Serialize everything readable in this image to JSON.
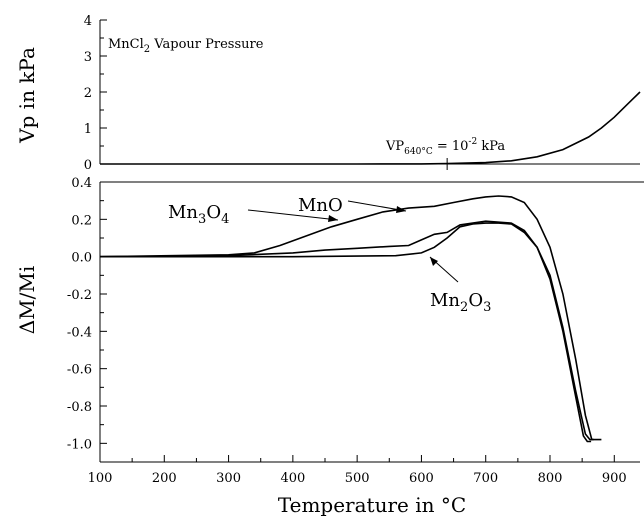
{
  "chart_data": [
    {
      "panel": "top",
      "type": "line",
      "title": "MnCl2 Vapour Pressure",
      "annotation": "VP640°C = 10-2 kPa",
      "ylabel": "Vp in kPa",
      "xlim": [
        100,
        940
      ],
      "ylim": [
        0,
        4
      ],
      "yticks": [
        "0",
        "1",
        "2",
        "3",
        "4"
      ],
      "grid": false,
      "series": [
        {
          "x": [
            100,
            300,
            500,
            600,
            640,
            700,
            740,
            780,
            820,
            860,
            880,
            900,
            920,
            940
          ],
          "values": [
            0,
            0,
            0,
            0.002,
            0.01,
            0.04,
            0.09,
            0.2,
            0.4,
            0.75,
            1.0,
            1.3,
            1.65,
            2.0
          ]
        }
      ]
    },
    {
      "panel": "bottom",
      "type": "line",
      "xlabel": "Temperature in °C",
      "ylabel": "ΔM/Mi",
      "xlim": [
        100,
        940
      ],
      "ylim": [
        -1.1,
        0.4
      ],
      "xticks": [
        "100",
        "200",
        "300",
        "400",
        "500",
        "600",
        "700",
        "800",
        "900"
      ],
      "yticks": [
        "0.4",
        "0.2",
        "0.0",
        "-0.2",
        "-0.4",
        "-0.6",
        "-0.8",
        "-1.0"
      ],
      "grid": false,
      "series": [
        {
          "name": "MnO",
          "x": [
            100,
            300,
            340,
            380,
            420,
            460,
            500,
            540,
            580,
            620,
            650,
            680,
            700,
            720,
            740,
            760,
            780,
            800,
            820,
            840,
            855,
            865,
            880
          ],
          "values": [
            0,
            0.01,
            0.02,
            0.06,
            0.11,
            0.16,
            0.2,
            0.24,
            0.26,
            0.27,
            0.29,
            0.31,
            0.32,
            0.325,
            0.32,
            0.29,
            0.2,
            0.05,
            -0.2,
            -0.55,
            -0.85,
            -0.98,
            -0.98
          ]
        },
        {
          "name": "Mn3O4",
          "x": [
            100,
            300,
            400,
            450,
            500,
            550,
            580,
            600,
            620,
            640,
            660,
            700,
            740,
            760,
            780,
            800,
            820,
            840,
            855,
            862,
            868
          ],
          "values": [
            0,
            0.005,
            0.02,
            0.035,
            0.045,
            0.055,
            0.06,
            0.09,
            0.12,
            0.13,
            0.17,
            0.19,
            0.18,
            0.14,
            0.05,
            -0.1,
            -0.38,
            -0.72,
            -0.95,
            -0.98,
            -0.98
          ]
        },
        {
          "name": "Mn2O3",
          "x": [
            100,
            400,
            560,
            600,
            620,
            640,
            660,
            680,
            700,
            720,
            740,
            760,
            780,
            800,
            820,
            840,
            852,
            858,
            864
          ],
          "values": [
            0,
            0,
            0.005,
            0.02,
            0.05,
            0.1,
            0.16,
            0.175,
            0.18,
            0.18,
            0.175,
            0.13,
            0.05,
            -0.12,
            -0.4,
            -0.75,
            -0.96,
            -0.99,
            -0.99
          ]
        }
      ]
    }
  ]
}
